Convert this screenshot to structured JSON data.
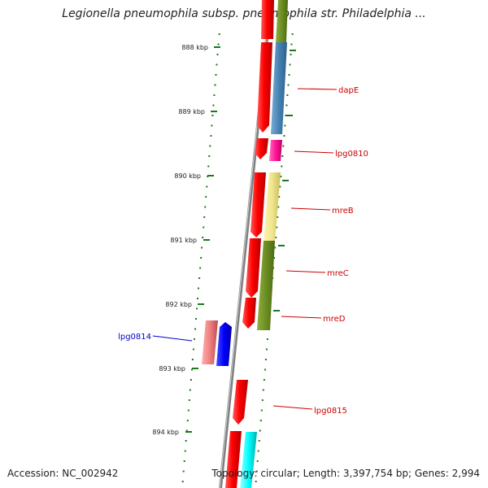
{
  "title": "Legionella pneumophila subsp. pneumophila str. Philadelphia ...",
  "footer": {
    "accession": "Accession: NC_002942",
    "stats": "Topology: circular; Length: 3,397,754 bp; Genes: 2,994"
  },
  "colors": {
    "backbone": "#808080",
    "ruler_dots": "#1a7a1a",
    "label_red": "#cc0000",
    "label_blue": "#0000cc"
  },
  "ruler": {
    "unit": "kbp",
    "ticks": [
      "888 kbp",
      "889 kbp",
      "890 kbp",
      "891 kbp",
      "892 kbp",
      "893 kbp",
      "894 kbp"
    ]
  },
  "genes": [
    {
      "name": "dapE",
      "color": "#4682b4",
      "strand": "reverse",
      "label_color": "#cc0000"
    },
    {
      "name": "lpg0810",
      "color": "#ff1493",
      "strand": "reverse",
      "label_color": "#cc0000"
    },
    {
      "name": "mreB",
      "color": "#f0e68c",
      "strand": "reverse",
      "label_color": "#cc0000"
    },
    {
      "name": "mreC",
      "color": "#6b8e23",
      "strand": "reverse",
      "label_color": "#cc0000"
    },
    {
      "name": "mreD",
      "color": "#6b8e23",
      "strand": "reverse",
      "label_color": "#cc0000"
    },
    {
      "name": "lpg0814",
      "color": "#f08080",
      "strand": "forward",
      "label_color": "#0000cc"
    },
    {
      "name": "lpg0815",
      "color": "#ff0000",
      "strand": "reverse",
      "label_color": "#cc0000"
    }
  ]
}
